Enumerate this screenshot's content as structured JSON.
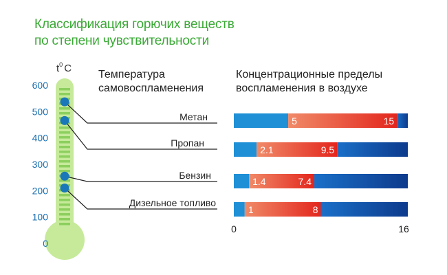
{
  "title": {
    "line1": "Классификация горючих веществ",
    "line2": "по степени чувствительности"
  },
  "colors": {
    "title": "#3aa935",
    "axis_text": "#1a6fb0",
    "thermo_fill": "#c6ea9a",
    "thermo_stripe": "#8ccf5e",
    "marker": "#1a78b8",
    "bar_blue": "#1f8fd6",
    "bar_dark": "#0d3a8c",
    "bar_red_light": "#f08a68",
    "bar_red_dark": "#e3261d"
  },
  "chart_data": [
    {
      "type": "thermometer-scale",
      "unit_label_base": "t",
      "unit_label_sup": "0",
      "unit_label_tail": "C",
      "ticks": [
        0,
        100,
        200,
        300,
        400,
        500,
        600
      ],
      "ylim": [
        0,
        600
      ],
      "column_header_line1": "Температура",
      "column_header_line2": "самовоспламенения",
      "points": [
        {
          "name": "Метан",
          "value": 537
        },
        {
          "name": "Пропан",
          "value": 466
        },
        {
          "name": "Бензин",
          "value": 255
        },
        {
          "name": "Дизельное топливо",
          "value": 210
        }
      ]
    },
    {
      "type": "bar",
      "orientation": "horizontal-range",
      "column_header_line1": "Концентрационные пределы",
      "column_header_line2": "воспламенения в воздухе",
      "xlim": [
        0,
        16
      ],
      "x_tick_labels": [
        "0",
        "16"
      ],
      "categories": [
        "Метан",
        "Пропан",
        "Бензин",
        "Дизельное топливо"
      ],
      "ranges": [
        {
          "low": 5,
          "high": 15,
          "low_label": "5",
          "high_label": "15"
        },
        {
          "low": 2.1,
          "high": 9.5,
          "low_label": "2.1",
          "high_label": "9.5"
        },
        {
          "low": 1.4,
          "high": 7.4,
          "low_label": "1.4",
          "high_label": "7.4"
        },
        {
          "low": 1,
          "high": 8,
          "low_label": "1",
          "high_label": "8"
        }
      ]
    }
  ]
}
